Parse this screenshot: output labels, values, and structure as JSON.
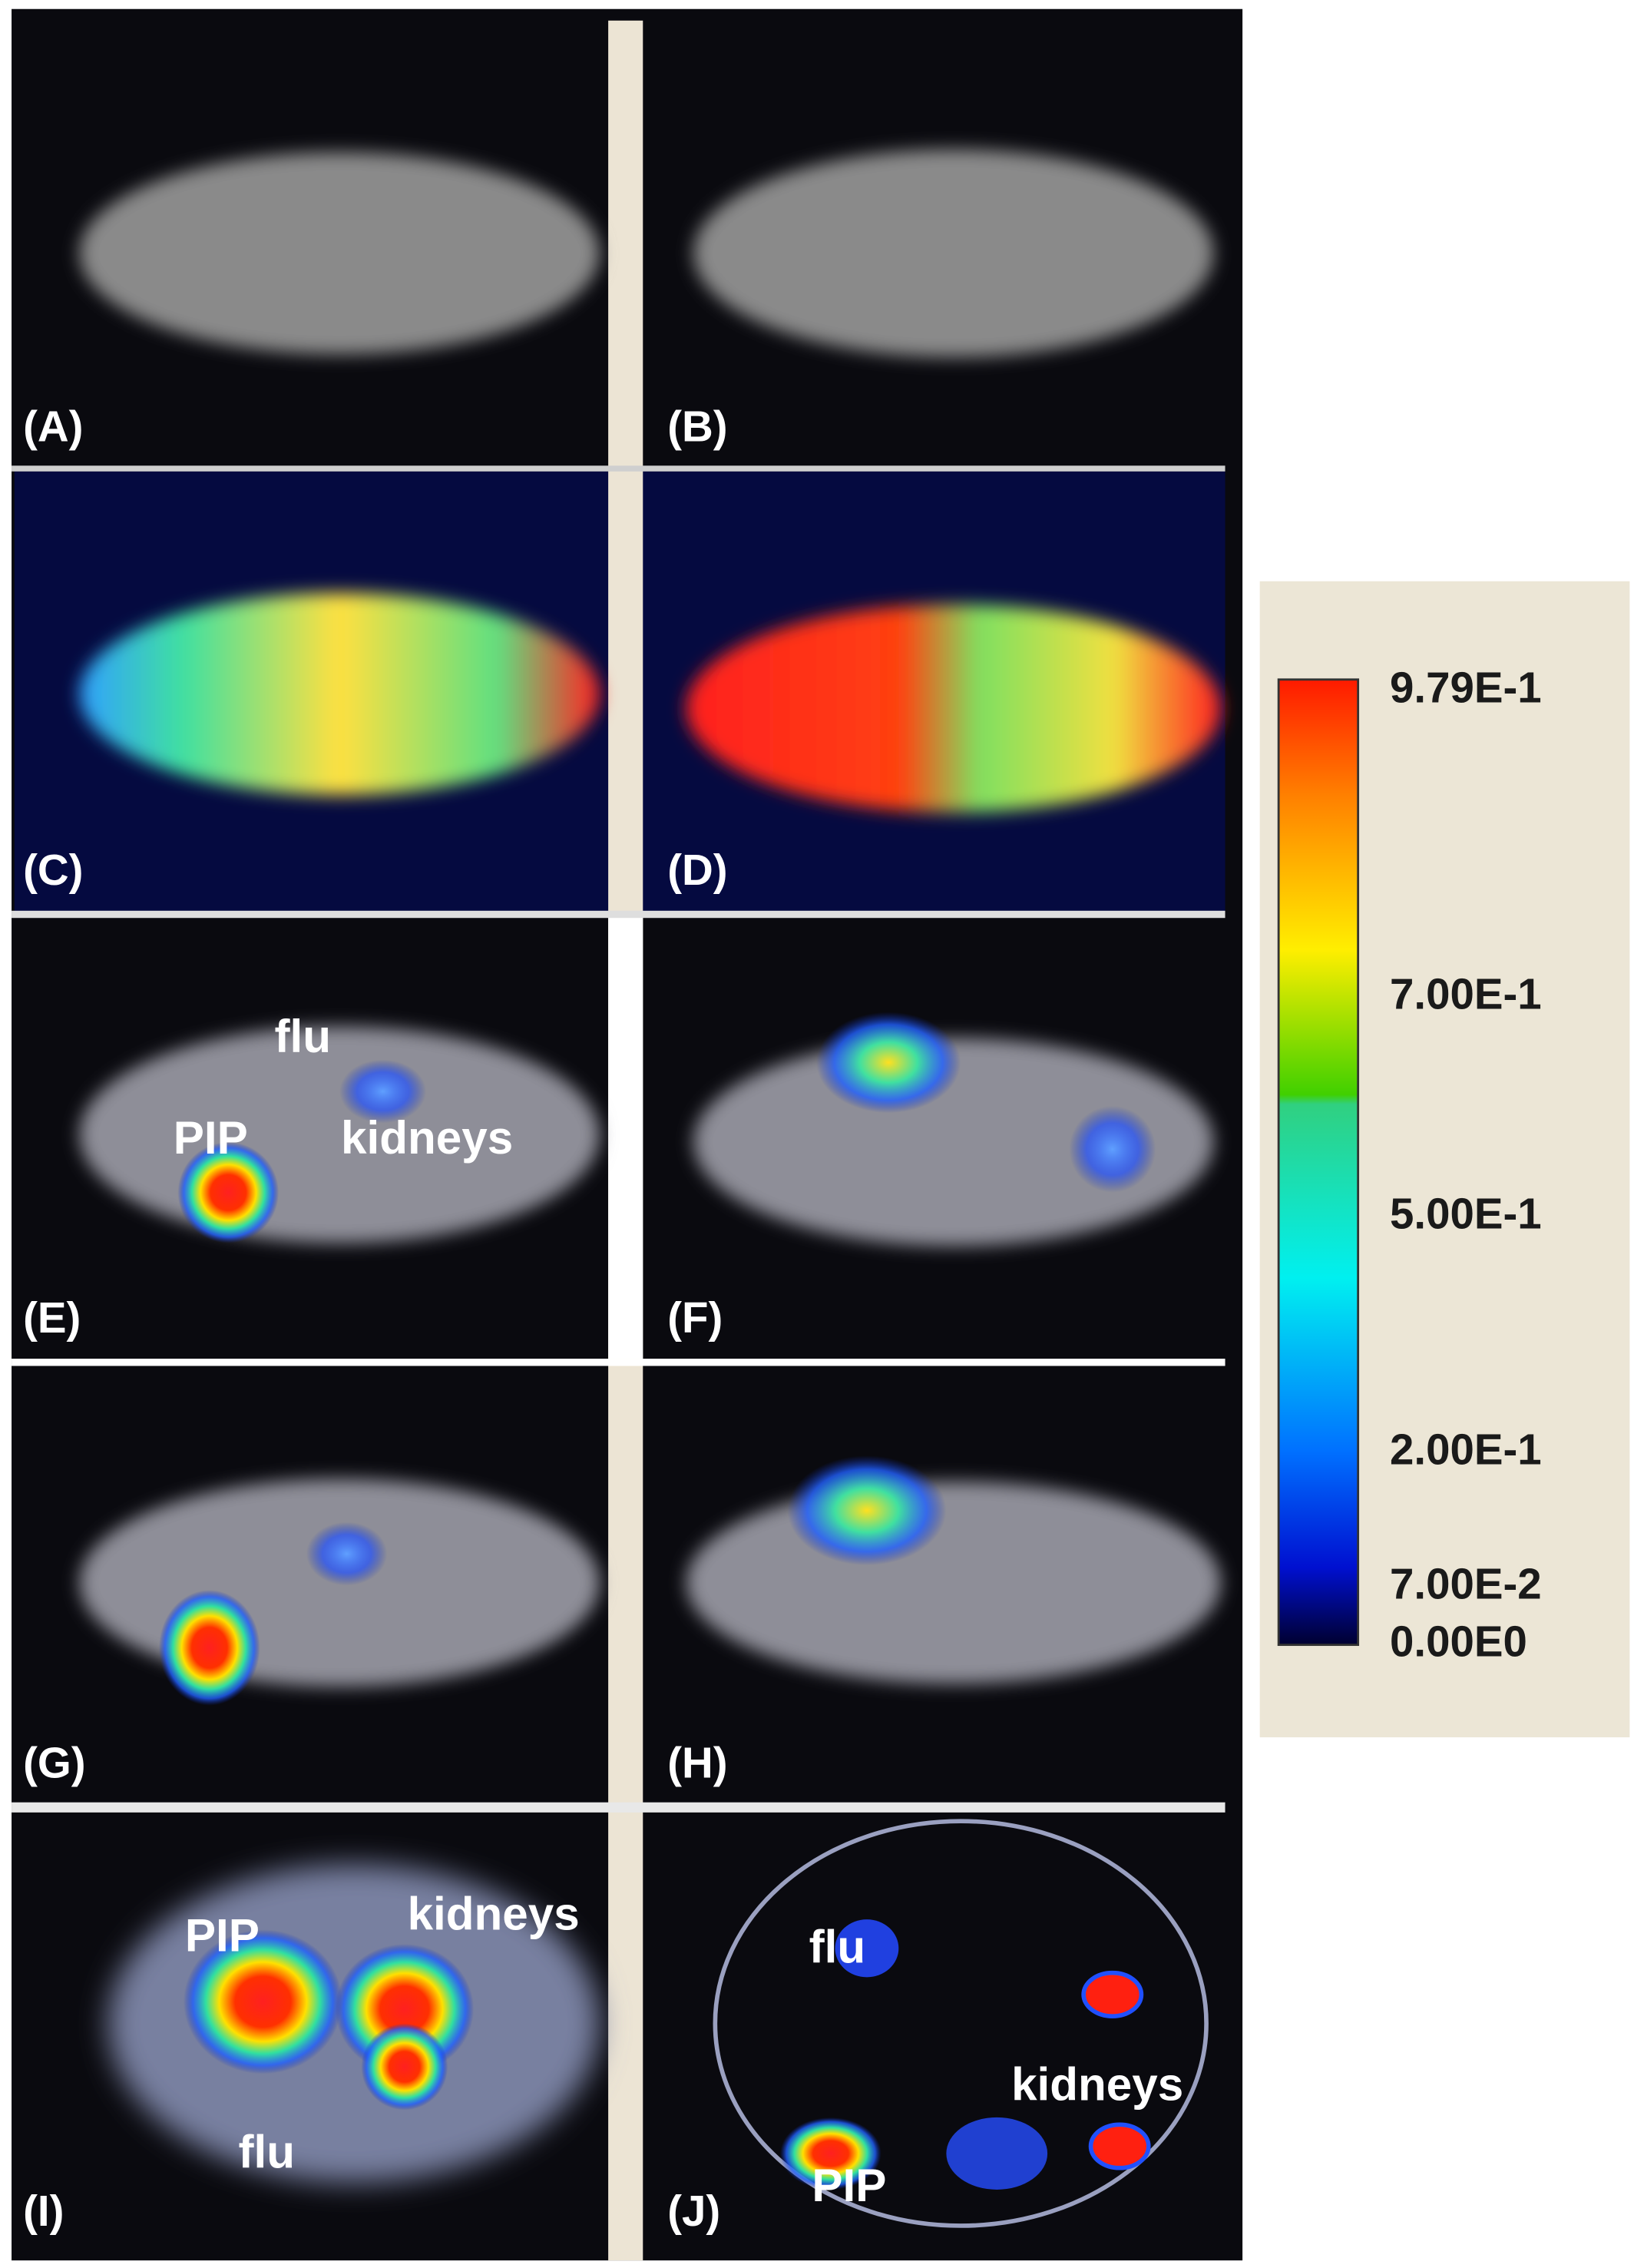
{
  "panels": [
    {
      "label": "(A)"
    },
    {
      "label": "(B)"
    },
    {
      "label": "(C)"
    },
    {
      "label": "(D)"
    },
    {
      "label": "(E)",
      "annotations": [
        "flu",
        "PIP",
        "kidneys"
      ]
    },
    {
      "label": "(F)"
    },
    {
      "label": "(G)"
    },
    {
      "label": "(H)"
    },
    {
      "label": "(I)",
      "annotations": [
        "PIP",
        "kidneys",
        "flu"
      ]
    },
    {
      "label": "(J)",
      "annotations": [
        "flu",
        "kidneys",
        "PIP"
      ]
    }
  ],
  "colorbar": {
    "labels": [
      "9.79E-1",
      "7.00E-1",
      "5.00E-1",
      "2.00E-1",
      "7.00E-2",
      "0.00E0"
    ]
  }
}
